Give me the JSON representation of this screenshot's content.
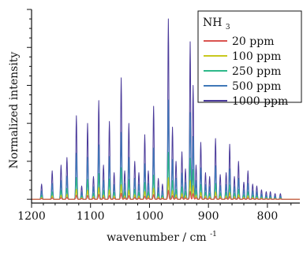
{
  "chart_data": {
    "type": "line",
    "xlabel": "wavenumber / cm",
    "xlabel_superscript": "-1",
    "ylabel": "Normalized intensity",
    "xlim": [
      1200,
      745
    ],
    "xticks": [
      1200,
      1100,
      1000,
      900,
      800
    ],
    "ylim": [
      -0.02,
      1.0
    ],
    "y_tick_labels_shown": false,
    "legend": {
      "title": "NH",
      "title_subscript": "3",
      "placement": "top-right"
    },
    "series": [
      {
        "name": "20 ppm",
        "color": "#d9534f",
        "scale": 0.05
      },
      {
        "name": "100 ppm",
        "color": "#c8c81e",
        "scale": 0.12
      },
      {
        "name": "250 ppm",
        "color": "#2eb88a",
        "scale": 0.26
      },
      {
        "name": "500 ppm",
        "color": "#3f78b8",
        "scale": 0.55
      },
      {
        "name": "1000 ppm",
        "color": "#4a3a9a",
        "scale": 1.0
      }
    ],
    "peaks": [
      {
        "x": 1183,
        "y": 0.08
      },
      {
        "x": 1165,
        "y": 0.15
      },
      {
        "x": 1150,
        "y": 0.18
      },
      {
        "x": 1140,
        "y": 0.22
      },
      {
        "x": 1124,
        "y": 0.44
      },
      {
        "x": 1115,
        "y": 0.07
      },
      {
        "x": 1105,
        "y": 0.4
      },
      {
        "x": 1095,
        "y": 0.12
      },
      {
        "x": 1086,
        "y": 0.52
      },
      {
        "x": 1078,
        "y": 0.18
      },
      {
        "x": 1068,
        "y": 0.41
      },
      {
        "x": 1060,
        "y": 0.14
      },
      {
        "x": 1048,
        "y": 0.64
      },
      {
        "x": 1042,
        "y": 0.15
      },
      {
        "x": 1035,
        "y": 0.4
      },
      {
        "x": 1025,
        "y": 0.2
      },
      {
        "x": 1018,
        "y": 0.14
      },
      {
        "x": 1008,
        "y": 0.34
      },
      {
        "x": 1002,
        "y": 0.15
      },
      {
        "x": 993,
        "y": 0.49
      },
      {
        "x": 985,
        "y": 0.11
      },
      {
        "x": 978,
        "y": 0.08
      },
      {
        "x": 968,
        "y": 0.95
      },
      {
        "x": 961,
        "y": 0.38
      },
      {
        "x": 955,
        "y": 0.2
      },
      {
        "x": 945,
        "y": 0.25
      },
      {
        "x": 939,
        "y": 0.16
      },
      {
        "x": 931,
        "y": 0.83
      },
      {
        "x": 926,
        "y": 0.6
      },
      {
        "x": 921,
        "y": 0.18
      },
      {
        "x": 913,
        "y": 0.3
      },
      {
        "x": 905,
        "y": 0.14
      },
      {
        "x": 898,
        "y": 0.12
      },
      {
        "x": 888,
        "y": 0.32
      },
      {
        "x": 880,
        "y": 0.13
      },
      {
        "x": 870,
        "y": 0.14
      },
      {
        "x": 864,
        "y": 0.29
      },
      {
        "x": 856,
        "y": 0.12
      },
      {
        "x": 849,
        "y": 0.2
      },
      {
        "x": 840,
        "y": 0.09
      },
      {
        "x": 833,
        "y": 0.15
      },
      {
        "x": 825,
        "y": 0.08
      },
      {
        "x": 818,
        "y": 0.07
      },
      {
        "x": 810,
        "y": 0.05
      },
      {
        "x": 802,
        "y": 0.04
      },
      {
        "x": 795,
        "y": 0.04
      },
      {
        "x": 787,
        "y": 0.03
      },
      {
        "x": 778,
        "y": 0.03
      }
    ]
  }
}
